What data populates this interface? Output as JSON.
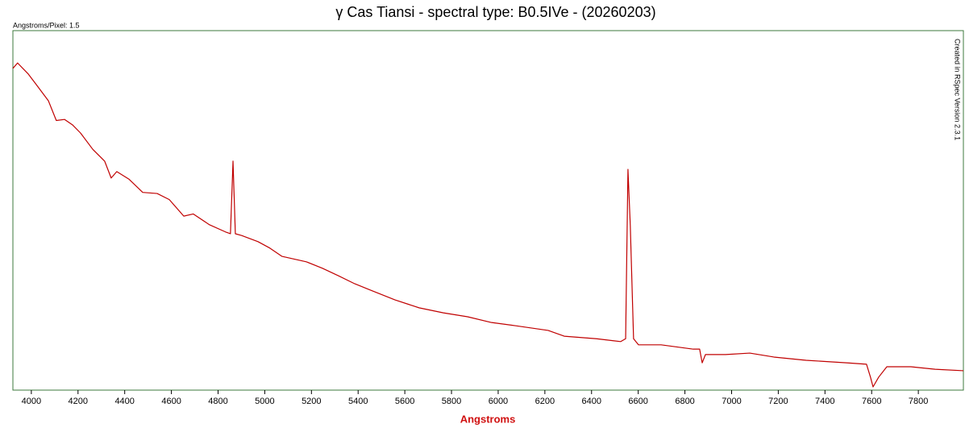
{
  "chart_data": {
    "type": "line",
    "title": "γ Cas Tiansi - spectral type: B0.5IVe - (20260203)",
    "subtitle": "Angstroms/Pixel: 1.5",
    "annotation": "Created in RSpec Version 2.3.1",
    "x_label": "Angstroms",
    "color": "#c00000",
    "x": [
      3921,
      3941,
      3986,
      4021,
      4073,
      4107,
      4142,
      4176,
      4211,
      4263,
      4314,
      4342,
      4366,
      4418,
      4477,
      4539,
      4591,
      4653,
      4694,
      4763,
      4832,
      4853,
      4864,
      4874,
      4901,
      4971,
      5022,
      5074,
      5178,
      5247,
      5316,
      5385,
      5454,
      5558,
      5661,
      5765,
      5869,
      5972,
      6076,
      6214,
      6283,
      6421,
      6525,
      6546,
      6556,
      6566,
      6580,
      6601,
      6698,
      6836,
      6863,
      6874,
      6888,
      6974,
      7078,
      7181,
      7319,
      7492,
      7578,
      7595,
      7606,
      7630,
      7665,
      7768,
      7872,
      7993
    ],
    "values": [
      89.5,
      91,
      88,
      85,
      80.5,
      75,
      75.3,
      73.8,
      71.5,
      67,
      63.7,
      59,
      60.8,
      58.7,
      55,
      54.7,
      53,
      48.4,
      49,
      46,
      44,
      43.5,
      63.7,
      43.5,
      43,
      41.3,
      39.5,
      37.2,
      35.7,
      33.9,
      31.8,
      29.6,
      27.8,
      25.1,
      22.9,
      21.5,
      20.4,
      18.8,
      17.9,
      16.6,
      15,
      14.3,
      13.5,
      14.3,
      61.4,
      45.7,
      14.3,
      12.6,
      12.6,
      11.4,
      11.4,
      7.6,
      9.9,
      9.9,
      10.3,
      9.2,
      8.3,
      7.6,
      7.2,
      3.6,
      0.9,
      3.6,
      6.5,
      6.5,
      5.8,
      5.4
    ],
    "xlim": [
      3921,
      7993
    ],
    "ylim": [
      0,
      100
    ],
    "xticks": [
      4000,
      4200,
      4400,
      4600,
      4800,
      5000,
      5200,
      5400,
      5600,
      5800,
      6000,
      6200,
      6400,
      6600,
      6800,
      7000,
      7200,
      7400,
      7600,
      7800
    ]
  }
}
